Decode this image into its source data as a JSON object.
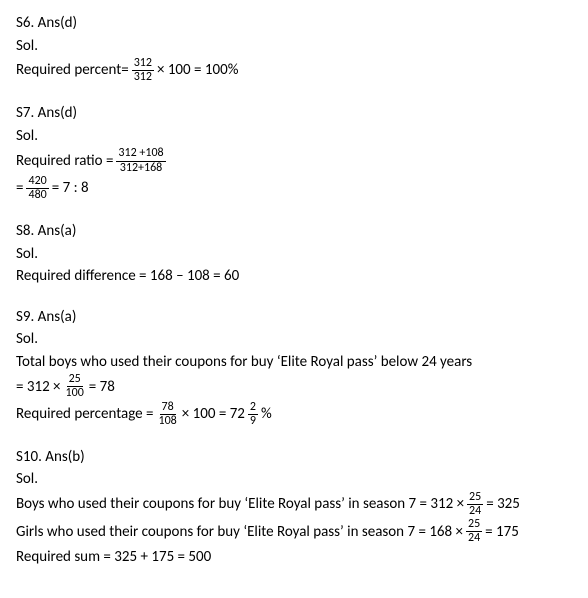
{
  "s6": {
    "heading": "S6. Ans(d)",
    "sol": "Sol.",
    "label": "Required percent= ",
    "num": "312",
    "den": "312",
    "after": " × 100 = 100%"
  },
  "s7": {
    "heading": "S7. Ans(d)",
    "sol": "Sol.",
    "label": "Required ratio  = ",
    "num1": "312 +108",
    "den1": "312+168",
    "eq": "= ",
    "num2": "420",
    "den2": "480",
    "after": " =   7 : 8"
  },
  "s8": {
    "heading": "S8. Ans(a)",
    "sol": "Sol.",
    "line": "Required difference = 168 –  108  = 60"
  },
  "s9": {
    "heading": "S9. Ans(a)",
    "sol": "Sol.",
    "line1": "Total boys who used their coupons for buy ‘Elite Royal pass’ below 24 years",
    "eq1a": " =  312 × ",
    "num1": "25",
    "den1": "100",
    "eq1b": " = 78",
    "label2": "Required percentage = ",
    "num2": "78",
    "den2": "108",
    "mid2": " × 100 =   72",
    "num3": "2",
    "den3": "9",
    "after2": "%"
  },
  "s10": {
    "heading": "S10. Ans(b)",
    "sol": "Sol.",
    "boys_a": "Boys who used their coupons for buy ‘Elite Royal pass’ in season 7 =  312 × ",
    "boys_num": "25",
    "boys_den": "24",
    "boys_b": " = 325",
    "girls_a": "Girls who used their coupons for buy ‘Elite Royal pass’ in season 7 = 168 × ",
    "girls_num": "25",
    "girls_den": "24",
    "girls_b": " = 175",
    "sum": "Required sum = 325 + 175  = 500"
  }
}
